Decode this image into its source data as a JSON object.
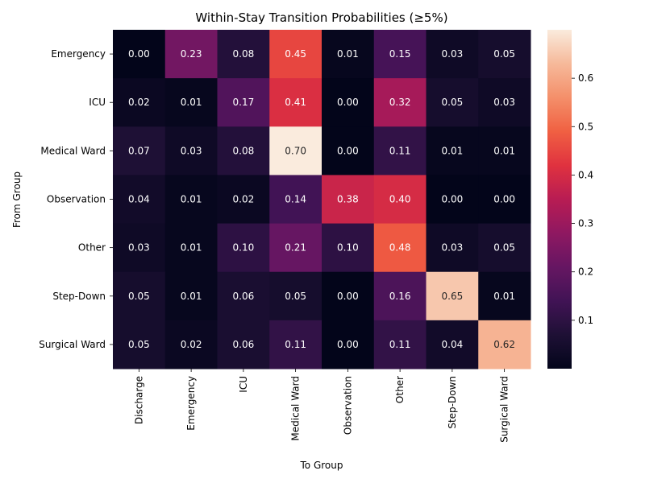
{
  "chart_data": {
    "type": "heatmap",
    "title": "Within-Stay Transition Probabilities (≥5%)",
    "xlabel": "To Group",
    "ylabel": "From Group",
    "row_labels": [
      "Emergency",
      "ICU",
      "Medical Ward",
      "Observation",
      "Other",
      "Step-Down",
      "Surgical Ward"
    ],
    "col_labels": [
      "Discharge",
      "Emergency",
      "ICU",
      "Medical Ward",
      "Observation",
      "Other",
      "Step-Down",
      "Surgical Ward"
    ],
    "values": [
      [
        0.0,
        0.23,
        0.08,
        0.45,
        0.01,
        0.15,
        0.03,
        0.05
      ],
      [
        0.02,
        0.01,
        0.17,
        0.41,
        0.0,
        0.32,
        0.05,
        0.03
      ],
      [
        0.07,
        0.03,
        0.08,
        0.7,
        0.0,
        0.11,
        0.01,
        0.01
      ],
      [
        0.04,
        0.01,
        0.02,
        0.14,
        0.38,
        0.4,
        0.0,
        0.0
      ],
      [
        0.03,
        0.01,
        0.1,
        0.21,
        0.1,
        0.48,
        0.03,
        0.05
      ],
      [
        0.05,
        0.01,
        0.06,
        0.05,
        0.0,
        0.16,
        0.65,
        0.01
      ],
      [
        0.05,
        0.02,
        0.06,
        0.11,
        0.0,
        0.11,
        0.04,
        0.62
      ]
    ],
    "vmin": 0.0,
    "vmax": 0.7,
    "colorbar_ticks": [
      "0.1",
      "0.2",
      "0.3",
      "0.4",
      "0.5",
      "0.6"
    ],
    "colormap": "rocket",
    "grid": false,
    "colorbar_position": "right"
  }
}
